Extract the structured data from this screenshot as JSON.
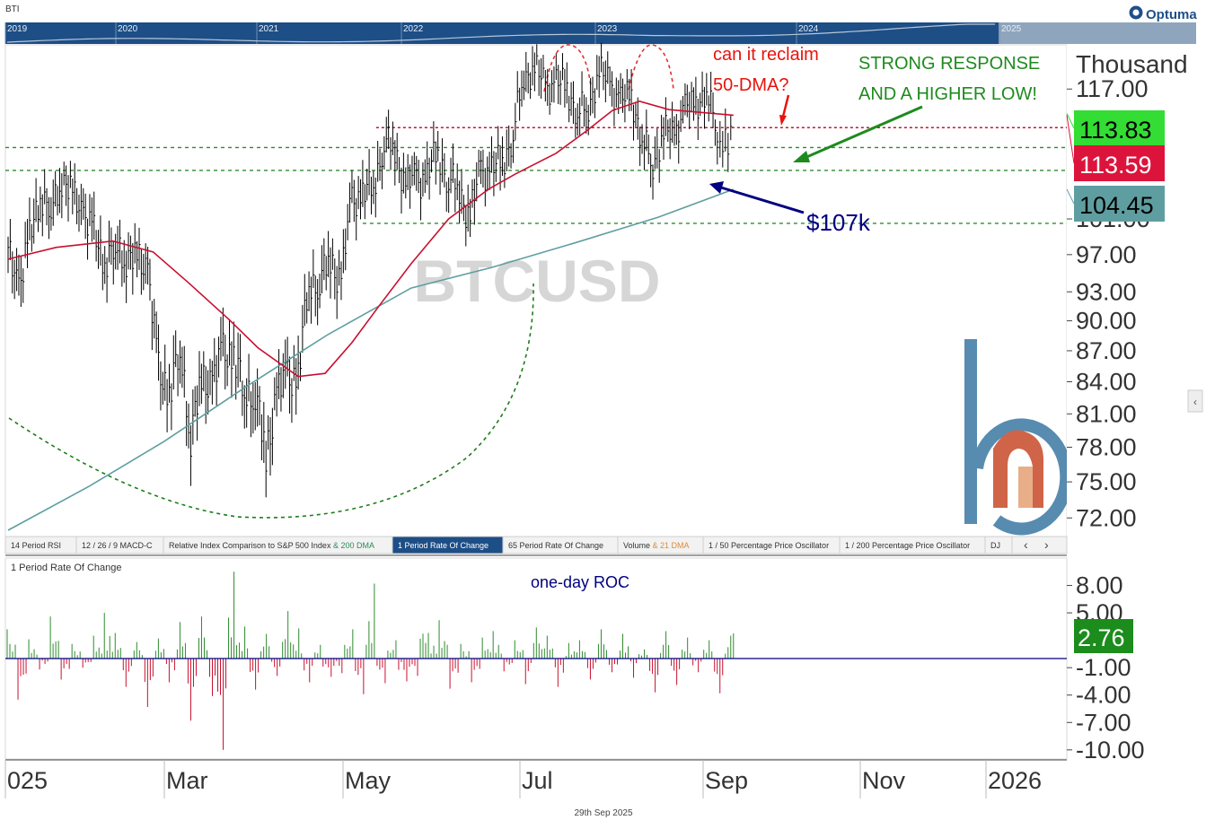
{
  "app": {
    "symbol_code": "BTI",
    "brand": "Optuma",
    "footer_date": "29th Sep 2025"
  },
  "overview": {
    "years": [
      "2019",
      "2020",
      "2021",
      "2022",
      "2023",
      "2024",
      "2025"
    ]
  },
  "chart_data": [
    {
      "type": "line",
      "title": "",
      "watermark": "BTCUSD",
      "ylabel": "Thousand",
      "ylim": [
        70.5,
        123
      ],
      "y_scale": "log",
      "y_ticks": [
        "117.00",
        "101.00",
        "97.00",
        "93.00",
        "90.00",
        "87.00",
        "84.00",
        "81.00",
        "78.00",
        "75.00",
        "72.00"
      ],
      "x_ticks": [
        "025",
        "Mar",
        "May",
        "Jul",
        "Sep",
        "Nov",
        "2026"
      ],
      "value_badges": [
        {
          "label": "113.83",
          "value": 113.83,
          "color": "#33dd33",
          "text_color": "#000000",
          "meaning": "last price"
        },
        {
          "label": "113.59",
          "value": 113.59,
          "color": "#dc143c",
          "text_color": "#ffffff",
          "meaning": "50-DMA"
        },
        {
          "label": "104.45",
          "value": 104.45,
          "color": "#5f9ea0",
          "text_color": "#000000",
          "meaning": "200-DMA"
        }
      ],
      "series": [
        {
          "name": "",
          "kind": "price",
          "color": "#000000",
          "points": [
            [
              "2025-01-02",
              96.9
            ],
            [
              "2025-01-06",
              94.0
            ],
            [
              "2025-01-10",
              98.5
            ],
            [
              "2025-01-14",
              104.1
            ],
            [
              "2025-01-18",
              101.5
            ],
            [
              "2025-01-22",
              106.0
            ],
            [
              "2025-01-26",
              103.5
            ],
            [
              "2025-01-30",
              102.0
            ],
            [
              "2025-02-03",
              99.0
            ],
            [
              "2025-02-07",
              96.5
            ],
            [
              "2025-02-11",
              97.5
            ],
            [
              "2025-02-15",
              97.0
            ],
            [
              "2025-02-19",
              96.2
            ],
            [
              "2025-02-23",
              95.8
            ],
            [
              "2025-02-27",
              84.5
            ],
            [
              "2025-03-03",
              83.5
            ],
            [
              "2025-03-07",
              86.5
            ],
            [
              "2025-03-11",
              79.5
            ],
            [
              "2025-03-15",
              83.5
            ],
            [
              "2025-03-19",
              84.5
            ],
            [
              "2025-03-23",
              86.5
            ],
            [
              "2025-03-27",
              87.0
            ],
            [
              "2025-03-31",
              82.5
            ],
            [
              "2025-04-04",
              83.5
            ],
            [
              "2025-04-08",
              76.5
            ],
            [
              "2025-04-12",
              83.5
            ],
            [
              "2025-04-16",
              84.0
            ],
            [
              "2025-04-20",
              85.0
            ],
            [
              "2025-04-24",
              93.5
            ],
            [
              "2025-04-28",
              94.5
            ],
            [
              "2025-05-02",
              96.0
            ],
            [
              "2025-05-06",
              94.5
            ],
            [
              "2025-05-10",
              103.0
            ],
            [
              "2025-05-14",
              104.0
            ],
            [
              "2025-05-18",
              104.5
            ],
            [
              "2025-05-22",
              110.5
            ],
            [
              "2025-05-26",
              109.0
            ],
            [
              "2025-05-30",
              105.0
            ],
            [
              "2025-06-03",
              105.5
            ],
            [
              "2025-06-07",
              106.0
            ],
            [
              "2025-06-11",
              109.0
            ],
            [
              "2025-06-15",
              105.5
            ],
            [
              "2025-06-19",
              104.5
            ],
            [
              "2025-06-23",
              101.0
            ],
            [
              "2025-06-27",
              107.0
            ],
            [
              "2025-07-01",
              106.5
            ],
            [
              "2025-07-05",
              108.0
            ],
            [
              "2025-07-09",
              111.0
            ],
            [
              "2025-07-13",
              119.0
            ],
            [
              "2025-07-17",
              119.5
            ],
            [
              "2025-07-21",
              117.5
            ],
            [
              "2025-07-25",
              117.5
            ],
            [
              "2025-07-29",
              117.5
            ],
            [
              "2025-08-02",
              113.5
            ],
            [
              "2025-08-06",
              115.0
            ],
            [
              "2025-08-10",
              119.0
            ],
            [
              "2025-08-14",
              118.0
            ],
            [
              "2025-08-18",
              115.0
            ],
            [
              "2025-08-22",
              116.5
            ],
            [
              "2025-08-26",
              110.0
            ],
            [
              "2025-08-30",
              108.0
            ],
            [
              "2025-09-03",
              111.0
            ],
            [
              "2025-09-07",
              111.5
            ],
            [
              "2025-09-11",
              114.0
            ],
            [
              "2025-09-15",
              115.5
            ],
            [
              "2025-09-19",
              116.0
            ],
            [
              "2025-09-23",
              112.5
            ],
            [
              "2025-09-25",
              109.5
            ],
            [
              "2025-09-27",
              109.5
            ],
            [
              "2025-09-29",
              113.83
            ]
          ]
        },
        {
          "name": "",
          "kind": "50-DMA",
          "color": "#c8102e",
          "points": [
            [
              "2025-01-02",
              96.5
            ],
            [
              "2025-01-20",
              97.8
            ],
            [
              "2025-02-10",
              98.5
            ],
            [
              "2025-02-25",
              97.3
            ],
            [
              "2025-03-10",
              94.0
            ],
            [
              "2025-03-25",
              90.2
            ],
            [
              "2025-04-05",
              87.3
            ],
            [
              "2025-04-20",
              84.5
            ],
            [
              "2025-04-30",
              84.8
            ],
            [
              "2025-05-10",
              87.8
            ],
            [
              "2025-05-20",
              91.5
            ],
            [
              "2025-06-01",
              96.0
            ],
            [
              "2025-06-15",
              101.0
            ],
            [
              "2025-06-30",
              104.5
            ],
            [
              "2025-07-10",
              106.3
            ],
            [
              "2025-07-25",
              108.8
            ],
            [
              "2025-08-05",
              111.5
            ],
            [
              "2025-08-15",
              114.2
            ],
            [
              "2025-08-25",
              115.4
            ],
            [
              "2025-09-05",
              114.3
            ],
            [
              "2025-09-15",
              114.0
            ],
            [
              "2025-09-29",
              113.59
            ]
          ]
        },
        {
          "name": "",
          "kind": "200-DMA",
          "color": "#5f9ea0",
          "points": [
            [
              "2025-01-02",
              71.0
            ],
            [
              "2025-02-01",
              74.6
            ],
            [
              "2025-03-01",
              78.5
            ],
            [
              "2025-04-01",
              83.6
            ],
            [
              "2025-05-01",
              88.6
            ],
            [
              "2025-06-01",
              93.4
            ],
            [
              "2025-07-01",
              95.6
            ],
            [
              "2025-08-01",
              98.3
            ],
            [
              "2025-09-01",
              101.2
            ],
            [
              "2025-09-29",
              104.45
            ]
          ]
        }
      ],
      "levels": [
        {
          "value": 112.0,
          "from": "2025-05-19",
          "color": "#c8102e",
          "style": "dotted"
        },
        {
          "value": 109.5,
          "from": "2025-01-01",
          "color": "#2e8b2e",
          "style": "dashed"
        },
        {
          "value": 106.7,
          "from": "2025-01-01",
          "color": "#2e8b2e",
          "style": "dashed"
        },
        {
          "value": 100.5,
          "from": "2025-05-14",
          "color": "#2e8b2e",
          "style": "dashed"
        }
      ],
      "annotations": {
        "question_line1": "can it reclaim",
        "question_line2": "50-DMA?",
        "response_line1": "STRONG RESPONSE",
        "response_line2": "AND A HIGHER LOW!",
        "support_label": "$107k",
        "question_color": "#e8130c",
        "response_color": "#1e8a1e",
        "support_color": "#000080"
      }
    },
    {
      "type": "bar",
      "title": "1 Period Rate Of Change",
      "annotation": "one-day ROC",
      "ylim": [
        -11,
        11
      ],
      "y_ticks": [
        "8.00",
        "5.00",
        "-1.00",
        "-4.00",
        "-7.00",
        "-10.00"
      ],
      "last_value": "2.76",
      "last_badge_color": "#1c8c1c",
      "positive_color": "#2e8b2e",
      "negative_color": "#c8102e",
      "sample_values": [
        3.2,
        -4.5,
        2.1,
        -1.2,
        4.6,
        -2.3,
        1.6,
        -1.0,
        2.5,
        5.0,
        2.8,
        -3.1,
        1.8,
        -5.3,
        2.2,
        -2.6,
        4.0,
        -6.8,
        4.6,
        -4.1,
        -10.0,
        9.5,
        3.5,
        -3.4,
        2.7,
        -1.9,
        5.2,
        3.3,
        -2.6,
        1.5,
        -2.0,
        -1.6,
        3.2,
        -3.9,
        8.2,
        -2.7,
        2.0,
        -2.5,
        -1.9,
        6.0,
        2.8,
        4.2,
        -3.3,
        1.6,
        -2.6,
        2.3,
        3.0,
        -1.4,
        2.0,
        -2.8,
        3.4,
        2.5,
        -3.1,
        1.7,
        2.0,
        -2.3,
        3.2,
        -1.5,
        2.7,
        -2.1,
        1.0,
        -3.7,
        3.0,
        -2.9,
        2.3,
        -1.5,
        2.0,
        -3.8,
        2.5,
        2.76
      ]
    }
  ],
  "tabs": [
    {
      "label": "14 Period RSI",
      "extra": "",
      "active": false
    },
    {
      "label": "12 / 26 / 9 MACD-C",
      "extra": "",
      "active": false
    },
    {
      "label": "Relative Index Comparison to S&P 500 Index",
      "extra": " & 200 DMA",
      "active": false
    },
    {
      "label": "1 Period Rate Of Change",
      "extra": "",
      "active": true
    },
    {
      "label": "65 Period Rate Of Change",
      "extra": "",
      "active": false
    },
    {
      "label": "Volume",
      "extra": " & 21 DMA",
      "active": false
    },
    {
      "label": "1 / 50 Percentage Price Oscillator",
      "extra": "",
      "active": false
    },
    {
      "label": "1 / 200 Percentage Price Oscillator",
      "extra": "",
      "active": false
    },
    {
      "label": "DJ",
      "extra": "",
      "active": false
    }
  ]
}
